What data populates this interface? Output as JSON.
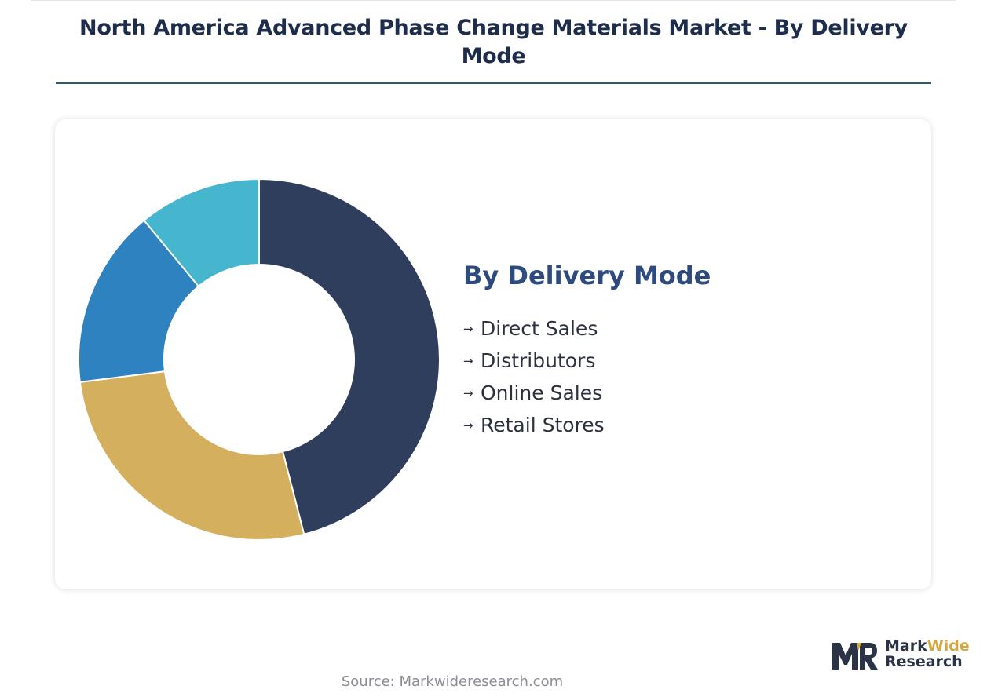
{
  "title": "North America Advanced Phase Change Materials Market - By Delivery Mode",
  "legend_title": "By Delivery Mode",
  "legend_arrow": "→",
  "source": "Source: Markwideresearch.com",
  "logo": {
    "word1": "Mark",
    "word2": "Wide",
    "word3": "Research"
  },
  "colors": {
    "Direct Sales": "#2e3e5c",
    "Distributors": "#d4b05e",
    "Online Sales": "#2e82c0",
    "Retail Stores": "#46b6ce",
    "title": "#1f2d4d",
    "legend_title": "#2d4b7e",
    "logo_dark": "#2b3447",
    "logo_gold": "#d4a741"
  },
  "chart_data": {
    "type": "pie",
    "donut": true,
    "title": "North America Advanced Phase Change Materials Market - By Delivery Mode",
    "legend_title": "By Delivery Mode",
    "legend_position": "right",
    "categories": [
      "Direct Sales",
      "Distributors",
      "Online Sales",
      "Retail Stores"
    ],
    "values": [
      46,
      27,
      16,
      11
    ],
    "value_unit": "%"
  }
}
